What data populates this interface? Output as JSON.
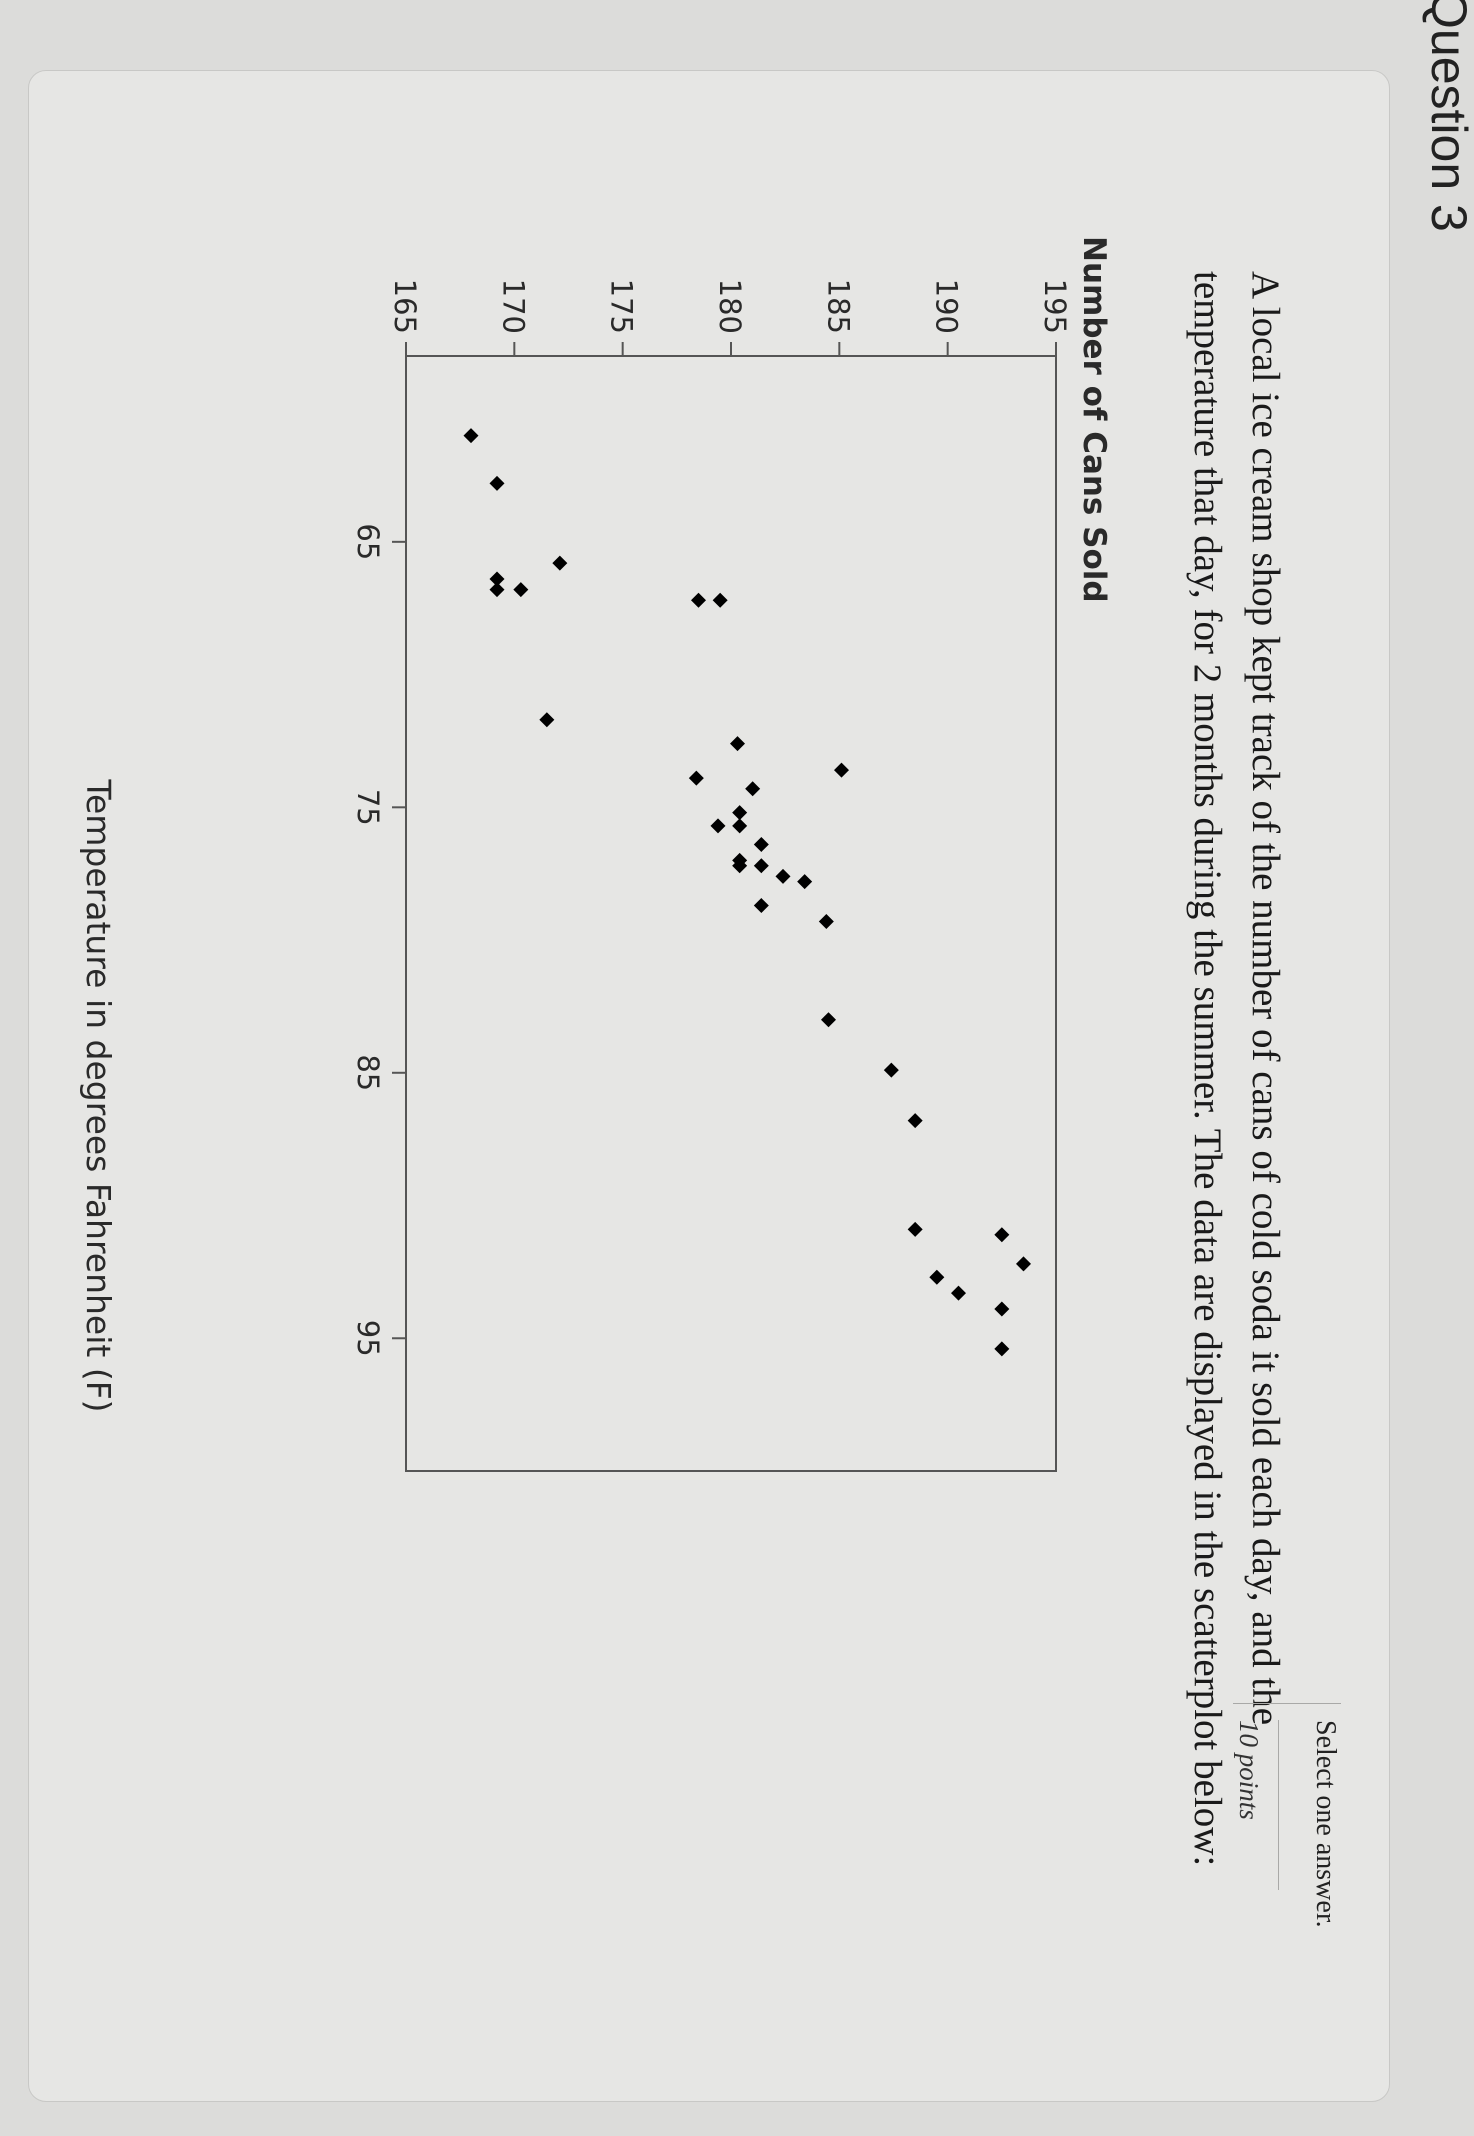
{
  "question": {
    "heading": "Question 3",
    "select_note": "Select one answer.",
    "points": "10 points",
    "prompt": "A local ice cream shop kept track of the number of cans of cold soda it sold each day, and the temperature that day, for 2 months during the summer. The data are displayed in the scatterplot below:"
  },
  "chart_data": {
    "type": "scatter",
    "title": "",
    "xlabel": "Temperature in degrees Fahrenheit (F)",
    "ylabel": "Number of Cans Sold",
    "xlim": [
      58,
      100
    ],
    "ylim": [
      165,
      195
    ],
    "xticks": [
      65,
      75,
      85,
      95
    ],
    "yticks": [
      165,
      170,
      175,
      180,
      185,
      190,
      195
    ],
    "grid": false,
    "marker": "diamond",
    "color": "#000000",
    "series": [
      {
        "x": [
          61,
          62.8,
          65.8,
          66.4,
          66.8,
          66.8,
          67.2,
          67.2,
          71.7,
          72.6,
          73.6,
          73.9,
          74.3,
          75.2,
          75.7,
          75.7,
          76.4,
          77,
          77.2,
          77.2,
          77.6,
          77.8,
          78.7,
          79.3,
          83,
          84.9,
          86.8,
          90.9,
          91.1,
          92.2,
          92.7,
          93.3,
          93.9,
          95.4
        ],
        "y": [
          168,
          169.2,
          172.1,
          169.2,
          169.2,
          170.3,
          179.5,
          178.5,
          171.5,
          180.3,
          185.1,
          178.4,
          181,
          180.4,
          180.4,
          179.4,
          181.4,
          180.4,
          180.4,
          181.4,
          182.4,
          183.4,
          181.4,
          184.4,
          184.5,
          187.4,
          188.5,
          188.5,
          192.5,
          193.5,
          189.5,
          190.5,
          192.5,
          192.5
        ]
      }
    ]
  }
}
